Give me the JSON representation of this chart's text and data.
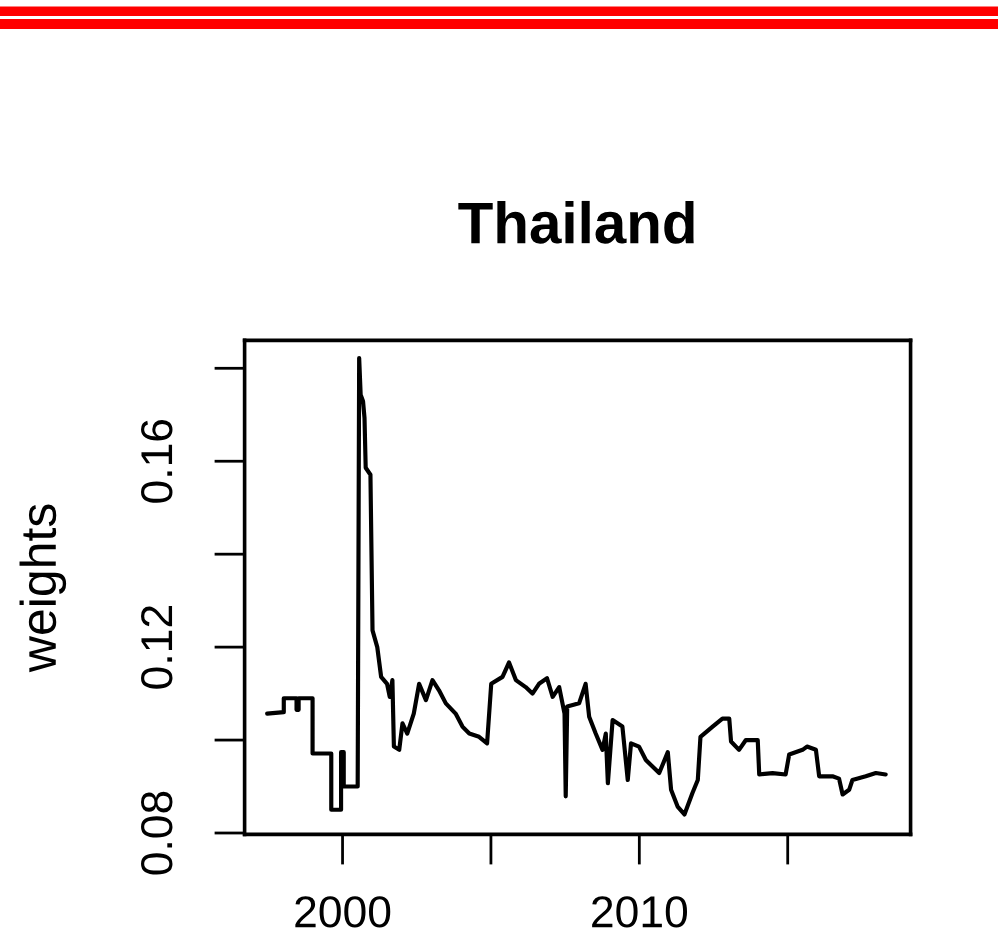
{
  "chart_data": {
    "type": "line",
    "title": "Thailand",
    "ylabel": "weights",
    "x": [
      1997.46,
      1998.02,
      1998.02,
      1998.45,
      1998.45,
      1998.52,
      1998.52,
      1998.99,
      1998.99,
      1999.62,
      1999.62,
      1999.95,
      1999.95,
      2000.04,
      2000.04,
      2000.51,
      2000.56,
      2000.61,
      2000.69,
      2000.74,
      2000.78,
      2000.94,
      2001.01,
      2001.17,
      2001.3,
      2001.5,
      2001.59,
      2001.68,
      2001.73,
      2001.91,
      2002.02,
      2002.18,
      2002.4,
      2002.58,
      2002.81,
      2003.03,
      2003.25,
      2003.48,
      2003.81,
      2004.04,
      2004.27,
      2004.6,
      2004.87,
      2005.01,
      2005.39,
      2005.61,
      2005.84,
      2006.17,
      2006.4,
      2006.62,
      2006.89,
      2007.08,
      2007.3,
      2007.48,
      2007.52,
      2007.57,
      2007.97,
      2008.19,
      2008.31,
      2008.53,
      2008.76,
      2008.87,
      2008.94,
      2009.1,
      2009.43,
      2009.61,
      2009.72,
      2009.99,
      2010.22,
      2010.67,
      2010.96,
      2011.07,
      2011.29,
      2011.52,
      2011.79,
      2011.97,
      2012.06,
      2012.47,
      2012.8,
      2013.03,
      2013.09,
      2013.36,
      2013.59,
      2013.99,
      2014.04,
      2014.49,
      2014.93,
      2015.05,
      2015.5,
      2015.65,
      2015.95,
      2016.06,
      2016.51,
      2016.73,
      2016.85,
      2017.07,
      2017.18,
      2017.63,
      2017.97,
      2018.3
    ],
    "series": [
      {
        "color": "#000000",
        "values": [
          0.1057,
          0.106,
          0.109,
          0.109,
          0.1065,
          0.1065,
          0.109,
          0.109,
          0.0971,
          0.0971,
          0.085,
          0.085,
          0.0974,
          0.0974,
          0.09,
          0.09,
          0.1822,
          0.1743,
          0.1729,
          0.1693,
          0.1586,
          0.1571,
          0.1236,
          0.12,
          0.1136,
          0.1121,
          0.1093,
          0.1129,
          0.0986,
          0.0979,
          0.1036,
          0.1014,
          0.1057,
          0.1121,
          0.1086,
          0.1129,
          0.1107,
          0.1079,
          0.1057,
          0.1029,
          0.1014,
          0.1007,
          0.0993,
          0.1121,
          0.1136,
          0.1167,
          0.1129,
          0.1114,
          0.11,
          0.1121,
          0.1133,
          0.1093,
          0.1114,
          0.1057,
          0.0879,
          0.1072,
          0.1079,
          0.1121,
          0.105,
          0.1014,
          0.0979,
          0.1014,
          0.0907,
          0.1043,
          0.1029,
          0.0914,
          0.0993,
          0.0986,
          0.0957,
          0.0929,
          0.0974,
          0.0893,
          0.0857,
          0.084,
          0.0886,
          0.0914,
          0.1007,
          0.1029,
          0.1046,
          0.1046,
          0.0997,
          0.0979,
          0.1,
          0.1,
          0.0926,
          0.0929,
          0.0926,
          0.0969,
          0.0979,
          0.0986,
          0.0979,
          0.0922,
          0.0922,
          0.0917,
          0.0883,
          0.0893,
          0.0914,
          0.0922,
          0.0929,
          0.0926
        ]
      }
    ],
    "xlim": [
      1996.7,
      2019.14
    ],
    "ylim": [
      0.0797,
      0.186
    ],
    "xticks": [
      2000,
      {
        "value": 2005,
        "label": null
      },
      2010,
      {
        "value": 2015,
        "label": null
      }
    ],
    "yticks": [
      0.08,
      {
        "value": 0.1,
        "label": null
      },
      0.12,
      {
        "value": 0.14,
        "label": null
      },
      0.16,
      {
        "value": 0.18,
        "label": null
      }
    ],
    "line_style": "solid"
  }
}
